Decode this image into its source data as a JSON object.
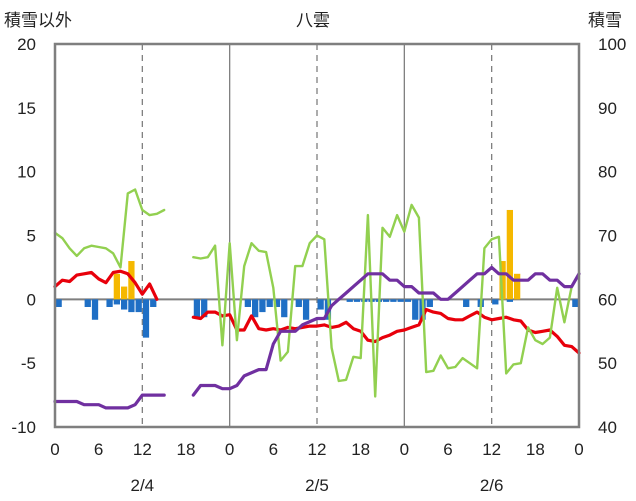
{
  "chart_data": {
    "type": "bar+line",
    "title": "八雲",
    "y_left_label": "積雪以外",
    "y_right_label": "積雪",
    "y_left_range": [
      -10,
      20
    ],
    "y_left_ticks": [
      "20",
      "15",
      "10",
      "5",
      "0",
      "-5",
      "-10"
    ],
    "y_right_range": [
      40,
      100
    ],
    "y_right_ticks": [
      "100",
      "90",
      "80",
      "70",
      "60",
      "50",
      "40"
    ],
    "x_hours_range": [
      0,
      72
    ],
    "x_tick_labels": [
      "0",
      "6",
      "12",
      "18",
      "0",
      "6",
      "12",
      "18",
      "0",
      "6",
      "12",
      "18",
      "0"
    ],
    "date_labels": [
      "2/4",
      "2/5",
      "2/6"
    ],
    "grid": "dashed vertical lines at hour 12 of each day, solid lines at day boundaries",
    "colors": {
      "precip_bar": "#1f6fc5",
      "snowfall_bar": "#f5b800",
      "temperature_line": "#e8000b",
      "wind_line": "#92d050",
      "snow_depth_line": "#7030a0"
    },
    "series": [
      {
        "key": "precip_bar",
        "values": [
          [
            0,
            -0.6
          ],
          [
            4,
            -0.6
          ],
          [
            5,
            -1.6
          ],
          [
            7,
            -0.6
          ],
          [
            8,
            -0.4
          ],
          [
            9,
            -0.8
          ],
          [
            10,
            -1
          ],
          [
            11,
            -1
          ],
          [
            12,
            -3
          ],
          [
            13,
            -0.6
          ],
          [
            19,
            -1.4
          ],
          [
            20,
            -1.4
          ],
          [
            26,
            -0.6
          ],
          [
            27,
            -1.4
          ],
          [
            28,
            -1
          ],
          [
            29,
            -0.6
          ],
          [
            30,
            -0.6
          ],
          [
            31,
            -1.4
          ],
          [
            33,
            -0.6
          ],
          [
            34,
            -1.6
          ],
          [
            36,
            -0.8
          ],
          [
            37,
            -1.6
          ],
          [
            40,
            -0.2
          ],
          [
            41,
            -0.2
          ],
          [
            42,
            -0.2
          ],
          [
            43,
            -0.2
          ],
          [
            44,
            -0.2
          ],
          [
            45,
            -0.2
          ],
          [
            46,
            -0.2
          ],
          [
            47,
            -0.2
          ],
          [
            48,
            -0.2
          ],
          [
            49,
            -1.6
          ],
          [
            50,
            -1.6
          ],
          [
            51,
            -0.6
          ],
          [
            56,
            -0.6
          ],
          [
            58,
            -0.6
          ],
          [
            60,
            -0.4
          ],
          [
            62,
            -0.2
          ],
          [
            71,
            -0.6
          ]
        ]
      },
      {
        "key": "snowfall_bar",
        "values": [
          [
            8,
            2
          ],
          [
            9,
            1
          ],
          [
            10,
            3
          ],
          [
            61,
            3
          ],
          [
            62,
            7
          ],
          [
            63,
            2
          ]
        ]
      },
      {
        "key": "temperature_line",
        "values": [
          [
            0,
            1.0
          ],
          [
            1,
            1.5
          ],
          [
            2,
            1.4
          ],
          [
            3,
            1.9
          ],
          [
            4,
            2.0
          ],
          [
            5,
            2.1
          ],
          [
            6,
            1.6
          ],
          [
            7,
            1.3
          ],
          [
            8,
            2.1
          ],
          [
            9,
            2.2
          ],
          [
            10,
            2.0
          ],
          [
            11,
            1.3
          ],
          [
            12,
            0.4
          ],
          [
            13,
            1.2
          ],
          [
            14,
            0.0
          ],
          [
            null,
            null
          ],
          [
            19,
            -1.4
          ],
          [
            20,
            -1.5
          ],
          [
            21,
            -1.0
          ],
          [
            22,
            -1.0
          ],
          [
            23,
            -1.3
          ],
          [
            24,
            -1.2
          ],
          [
            25,
            -2.4
          ],
          [
            26,
            -2.4
          ],
          [
            27,
            -1.3
          ],
          [
            28,
            -2.3
          ],
          [
            29,
            -2.4
          ],
          [
            30,
            -2.3
          ],
          [
            31,
            -2.4
          ],
          [
            32,
            -2.2
          ],
          [
            33,
            -2.3
          ],
          [
            34,
            -2.2
          ],
          [
            35,
            -2.1
          ],
          [
            36,
            -2.1
          ],
          [
            37,
            -2.0
          ],
          [
            38,
            -2.2
          ],
          [
            39,
            -2.1
          ],
          [
            40,
            -1.8
          ],
          [
            41,
            -2.3
          ],
          [
            42,
            -2.5
          ],
          [
            43,
            -3.2
          ],
          [
            44,
            -3.3
          ],
          [
            45,
            -3.0
          ],
          [
            46,
            -2.8
          ],
          [
            47,
            -2.5
          ],
          [
            48,
            -2.4
          ],
          [
            49,
            -2.2
          ],
          [
            50,
            -2.0
          ],
          [
            51,
            -0.8
          ],
          [
            52,
            -1.0
          ],
          [
            53,
            -1.1
          ],
          [
            54,
            -1.5
          ],
          [
            55,
            -1.6
          ],
          [
            56,
            -1.6
          ],
          [
            57,
            -1.3
          ],
          [
            58,
            -1.0
          ],
          [
            59,
            -1.4
          ],
          [
            60,
            -1.6
          ],
          [
            61,
            -1.5
          ],
          [
            62,
            -1.4
          ],
          [
            63,
            -1.6
          ],
          [
            64,
            -1.7
          ],
          [
            65,
            -2.4
          ],
          [
            66,
            -2.6
          ],
          [
            67,
            -2.5
          ],
          [
            68,
            -2.4
          ],
          [
            69,
            -2.9
          ],
          [
            70,
            -3.6
          ],
          [
            71,
            -3.7
          ],
          [
            72,
            -4.2
          ]
        ]
      },
      {
        "key": "wind_line",
        "values": [
          [
            0,
            5.2
          ],
          [
            1,
            4.8
          ],
          [
            2,
            4.0
          ],
          [
            3,
            3.4
          ],
          [
            4,
            4.0
          ],
          [
            5,
            4.2
          ],
          [
            6,
            4.1
          ],
          [
            7,
            4.0
          ],
          [
            8,
            3.6
          ],
          [
            9,
            2.5
          ],
          [
            10,
            8.3
          ],
          [
            11,
            8.6
          ],
          [
            12,
            7.0
          ],
          [
            13,
            6.6
          ],
          [
            14,
            6.7
          ],
          [
            15,
            7.0
          ],
          [
            null,
            null
          ],
          [
            19,
            3.3
          ],
          [
            20,
            3.2
          ],
          [
            21,
            3.3
          ],
          [
            22,
            4.2
          ],
          [
            23,
            -3.6
          ],
          [
            24,
            4.4
          ],
          [
            25,
            -3.2
          ],
          [
            26,
            2.6
          ],
          [
            27,
            4.4
          ],
          [
            28,
            3.8
          ],
          [
            29,
            3.7
          ],
          [
            30,
            0.9
          ],
          [
            31,
            -4.8
          ],
          [
            32,
            -4.1
          ],
          [
            33,
            2.6
          ],
          [
            34,
            2.6
          ],
          [
            35,
            4.4
          ],
          [
            36,
            5.0
          ],
          [
            37,
            4.7
          ],
          [
            38,
            -3.8
          ],
          [
            39,
            -6.4
          ],
          [
            40,
            -6.3
          ],
          [
            41,
            -4.5
          ],
          [
            42,
            -4.6
          ],
          [
            43,
            6.6
          ],
          [
            44,
            -7.6
          ],
          [
            45,
            5.6
          ],
          [
            46,
            4.9
          ],
          [
            47,
            6.6
          ],
          [
            48,
            5.3
          ],
          [
            49,
            7.4
          ],
          [
            50,
            6.4
          ],
          [
            51,
            -5.7
          ],
          [
            52,
            -5.6
          ],
          [
            53,
            -4.4
          ],
          [
            54,
            -5.4
          ],
          [
            55,
            -5.3
          ],
          [
            56,
            -4.6
          ],
          [
            57,
            -5.0
          ],
          [
            58,
            -5.4
          ],
          [
            59,
            4.0
          ],
          [
            60,
            4.7
          ],
          [
            61,
            4.9
          ],
          [
            62,
            -5.8
          ],
          [
            63,
            -5.1
          ],
          [
            64,
            -5.0
          ],
          [
            65,
            -2.2
          ],
          [
            66,
            -3.2
          ],
          [
            67,
            -3.5
          ],
          [
            68,
            -3.0
          ],
          [
            69,
            0.9
          ],
          [
            70,
            -1.8
          ],
          [
            71,
            1.0
          ]
        ]
      },
      {
        "key": "snow_depth_line",
        "values": [
          [
            0,
            44
          ],
          [
            2,
            44
          ],
          [
            3,
            44
          ],
          [
            4,
            43.5
          ],
          [
            6,
            43.5
          ],
          [
            7,
            43
          ],
          [
            9,
            43
          ],
          [
            10,
            43
          ],
          [
            11,
            43.5
          ],
          [
            12,
            45
          ],
          [
            13,
            45
          ],
          [
            15,
            45
          ],
          [
            null,
            null
          ],
          [
            19,
            45
          ],
          [
            20,
            46.5
          ],
          [
            22,
            46.5
          ],
          [
            23,
            46
          ],
          [
            24,
            46
          ],
          [
            25,
            46.5
          ],
          [
            26,
            48
          ],
          [
            28,
            49
          ],
          [
            29,
            49
          ],
          [
            30,
            53
          ],
          [
            31,
            55
          ],
          [
            33,
            55
          ],
          [
            34,
            56
          ],
          [
            36,
            57
          ],
          [
            37,
            57
          ],
          [
            38,
            59
          ],
          [
            39,
            60
          ],
          [
            40,
            61
          ],
          [
            41,
            62
          ],
          [
            42,
            63
          ],
          [
            43,
            64
          ],
          [
            44,
            64
          ],
          [
            45,
            64
          ],
          [
            46,
            63
          ],
          [
            47,
            63
          ],
          [
            48,
            62
          ],
          [
            49,
            62
          ],
          [
            50,
            61
          ],
          [
            51,
            61
          ],
          [
            52,
            61
          ],
          [
            53,
            60
          ],
          [
            54,
            60
          ],
          [
            55,
            61
          ],
          [
            56,
            62
          ],
          [
            57,
            63
          ],
          [
            58,
            64
          ],
          [
            59,
            64
          ],
          [
            60,
            65
          ],
          [
            61,
            64
          ],
          [
            62,
            64
          ],
          [
            63,
            63
          ],
          [
            64,
            63
          ],
          [
            65,
            63
          ],
          [
            66,
            64
          ],
          [
            67,
            64
          ],
          [
            68,
            63
          ],
          [
            69,
            63
          ],
          [
            70,
            62
          ],
          [
            71,
            62
          ],
          [
            72,
            64
          ]
        ]
      }
    ]
  }
}
